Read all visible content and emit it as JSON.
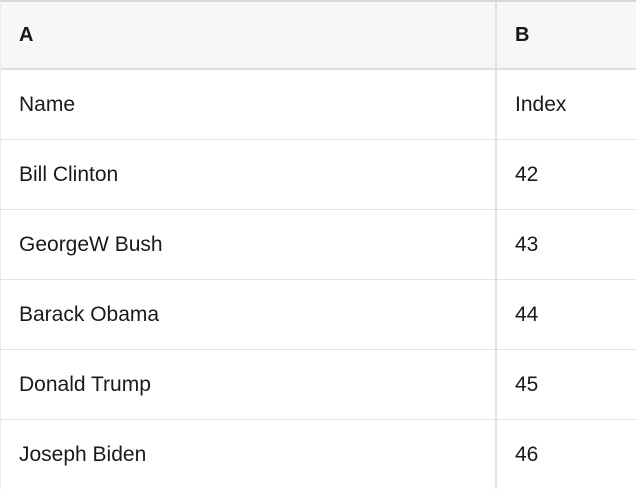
{
  "table": {
    "column_headers": [
      {
        "label": "A"
      },
      {
        "label": "B"
      }
    ],
    "rows": [
      {
        "a": "Name",
        "b": "Index"
      },
      {
        "a": "Bill Clinton",
        "b": "42"
      },
      {
        "a": "GeorgeW Bush",
        "b": "43"
      },
      {
        "a": "Barack Obama",
        "b": "44"
      },
      {
        "a": "Donald Trump",
        "b": "45"
      },
      {
        "a": "Joseph Biden",
        "b": "46"
      }
    ]
  },
  "colors": {
    "header_background": "#f7f7f7",
    "row_background": "#ffffff",
    "border": "#e2e2e2",
    "top_border": "#d8d8d8",
    "text": "#1a1a1a"
  }
}
